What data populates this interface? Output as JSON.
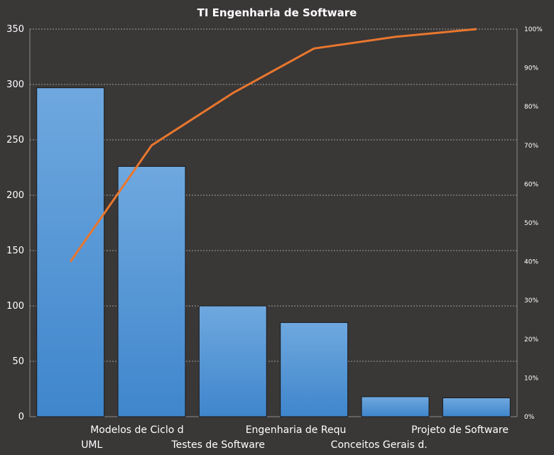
{
  "chart_data": {
    "type": "bar",
    "title": "TI Engenharia de Software",
    "xlabel": "",
    "ylabel": "",
    "categories": [
      "UML",
      "Modelos de Ciclo d",
      "Testes de Software",
      "Engenharia de Requ",
      "Conceitos Gerais d.",
      "Projeto de Software"
    ],
    "series": [
      {
        "values": [
          297,
          226,
          100,
          85,
          18,
          17
        ]
      },
      {
        "values": [
          0.4,
          0.7,
          0.835,
          0.95,
          0.98,
          1.0
        ]
      }
    ],
    "ylim": [
      0,
      350
    ],
    "y_ticks": [
      0,
      50,
      100,
      150,
      200,
      250,
      300,
      350
    ],
    "y2lim": [
      0,
      1
    ],
    "y2_ticks": [
      "0%",
      "10%",
      "20%",
      "30%",
      "40%",
      "50%",
      "60%",
      "70%",
      "80%",
      "90%",
      "100%"
    ],
    "grid": true,
    "legend": "none",
    "colors": {
      "background": "#3a3737",
      "bar_top": "#6fa8df",
      "bar_bottom": "#3f86cc",
      "line": "#e8772e",
      "grid": "#bfbfbf",
      "text": "#ffffff"
    }
  }
}
